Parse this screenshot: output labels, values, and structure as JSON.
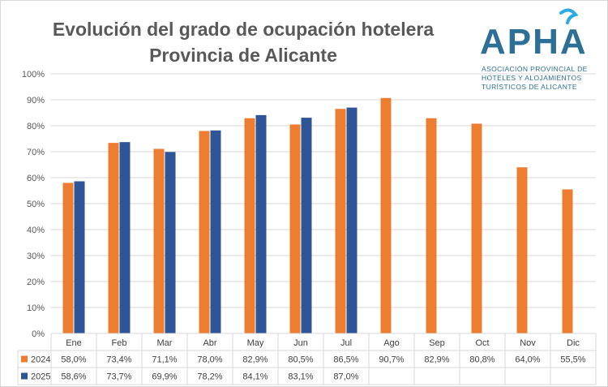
{
  "header": {
    "title_line1": "Evolución del grado de ocupación hotelera",
    "title_line2": "Provincia de Alicante"
  },
  "logo": {
    "text": "APHA",
    "subtitle_lines": [
      "ASOCIACIÓN PROVINCIAL DE",
      "HOTELES Y ALOJAMIENTOS",
      "TURÍSTICOS DE ALICANTE"
    ],
    "color": "#2e6f96",
    "accent": "#29abe2"
  },
  "chart_data": {
    "type": "bar",
    "categories": [
      "Ene",
      "Feb",
      "Mar",
      "Abr",
      "May",
      "Jun",
      "Jul",
      "Ago",
      "Sep",
      "Oct",
      "Nov",
      "Dic"
    ],
    "series": [
      {
        "name": "2024",
        "color": "#ed7d31",
        "values": [
          58.0,
          73.4,
          71.1,
          78.0,
          82.9,
          80.5,
          86.5,
          90.7,
          82.9,
          80.8,
          64.0,
          55.5
        ],
        "labels": [
          "58,0%",
          "73,4%",
          "71,1%",
          "78,0%",
          "82,9%",
          "80,5%",
          "86,5%",
          "90,7%",
          "82,9%",
          "80,8%",
          "64,0%",
          "55,5%"
        ]
      },
      {
        "name": "2025",
        "color": "#2f5597",
        "values": [
          58.6,
          73.7,
          69.9,
          78.2,
          84.1,
          83.1,
          87.0,
          null,
          null,
          null,
          null,
          null
        ],
        "labels": [
          "58,6%",
          "73,7%",
          "69,9%",
          "78,2%",
          "84,1%",
          "83,1%",
          "87,0%",
          "",
          "",
          "",
          "",
          ""
        ]
      }
    ],
    "yticks": [
      "0%",
      "10%",
      "20%",
      "30%",
      "40%",
      "50%",
      "60%",
      "70%",
      "80%",
      "90%",
      "100%"
    ],
    "ylim": [
      0,
      100
    ],
    "grid": true,
    "data_table": true
  }
}
